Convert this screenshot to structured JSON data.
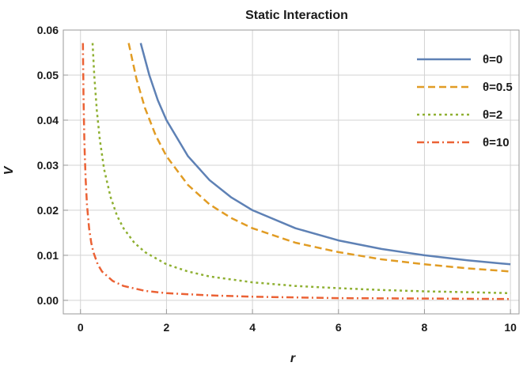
{
  "chart_data": {
    "type": "line",
    "title": "Static Interaction",
    "xlabel": "r",
    "ylabel": "V",
    "xlim": [
      -0.4,
      10.2
    ],
    "ylim": [
      -0.003,
      0.06
    ],
    "x_ticks": [
      0,
      2,
      4,
      6,
      8,
      10
    ],
    "x_tick_labels": [
      "0",
      "2",
      "4",
      "6",
      "8",
      "10"
    ],
    "y_ticks": [
      0.0,
      0.01,
      0.02,
      0.03,
      0.04,
      0.05,
      0.06
    ],
    "y_tick_labels": [
      "0.00",
      "0.01",
      "0.02",
      "0.03",
      "0.04",
      "0.05",
      "0.06"
    ],
    "grid": true,
    "legend_position": "top-right",
    "series": [
      {
        "name": "θ=0",
        "color": "#5e81b5",
        "dash": "solid",
        "x": [
          1.4,
          1.6,
          1.8,
          2,
          2.5,
          3,
          3.5,
          4,
          5,
          6,
          7,
          8,
          9,
          10
        ],
        "y": [
          0.0571,
          0.05,
          0.0444,
          0.04,
          0.032,
          0.0267,
          0.0229,
          0.02,
          0.016,
          0.0133,
          0.0114,
          0.01,
          0.0089,
          0.008
        ]
      },
      {
        "name": "θ=0.5",
        "color": "#e19c24",
        "dash": "dashed",
        "x": [
          1.12,
          1.3,
          1.5,
          1.75,
          2,
          2.5,
          3,
          3.5,
          4,
          5,
          6,
          7,
          8,
          9,
          10
        ],
        "y": [
          0.0571,
          0.0492,
          0.0427,
          0.0366,
          0.032,
          0.0256,
          0.0213,
          0.0183,
          0.016,
          0.0128,
          0.0107,
          0.0091,
          0.008,
          0.0071,
          0.0064
        ]
      },
      {
        "name": "θ=2",
        "color": "#8fb032",
        "dash": "dotted",
        "x": [
          0.28,
          0.32,
          0.38,
          0.45,
          0.55,
          0.7,
          0.85,
          1,
          1.25,
          1.5,
          2,
          2.5,
          3,
          4,
          5,
          6,
          7,
          8,
          9,
          10
        ],
        "y": [
          0.0571,
          0.05,
          0.0421,
          0.0356,
          0.0291,
          0.0229,
          0.0188,
          0.016,
          0.0128,
          0.0107,
          0.008,
          0.0064,
          0.0053,
          0.004,
          0.0032,
          0.0027,
          0.0023,
          0.002,
          0.0018,
          0.0016
        ]
      },
      {
        "name": "θ=10",
        "color": "#eb6235",
        "dash": "dashdot",
        "x": [
          0.056,
          0.06,
          0.065,
          0.07,
          0.08,
          0.09,
          0.1,
          0.12,
          0.15,
          0.2,
          0.25,
          0.3,
          0.4,
          0.5,
          0.75,
          1,
          1.5,
          2,
          3,
          4,
          6,
          8,
          10
        ],
        "y": [
          0.0571,
          0.0533,
          0.0492,
          0.0457,
          0.04,
          0.0356,
          0.032,
          0.0267,
          0.0213,
          0.016,
          0.0128,
          0.0107,
          0.008,
          0.0064,
          0.0043,
          0.0032,
          0.0021,
          0.0016,
          0.0011,
          0.0008,
          0.0005,
          0.0004,
          0.0003
        ]
      }
    ]
  }
}
